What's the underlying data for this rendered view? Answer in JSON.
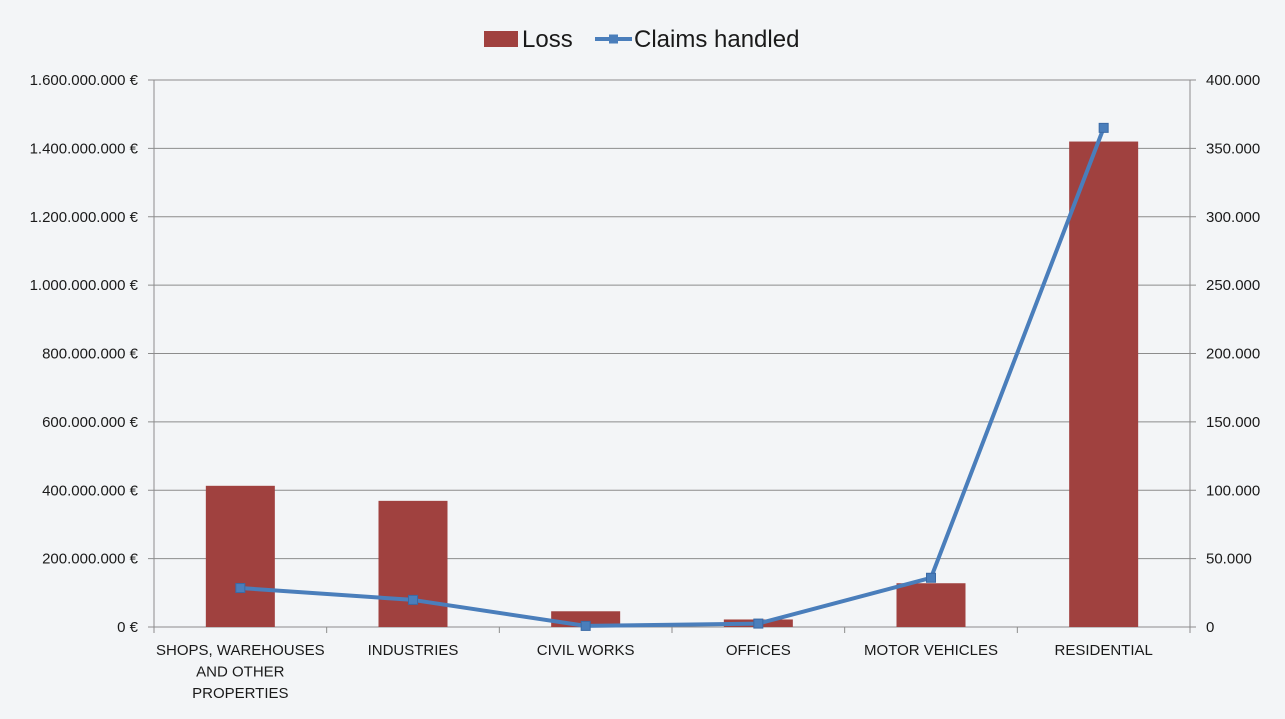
{
  "chart_data": {
    "type": "bar",
    "categories": [
      [
        "SHOPS, WAREHOUSES",
        "AND OTHER",
        "PROPERTIES"
      ],
      [
        "INDUSTRIES"
      ],
      [
        "CIVIL WORKS"
      ],
      [
        "OFFICES"
      ],
      [
        "MOTOR VEHICLES"
      ],
      [
        "RESIDENTIAL"
      ]
    ],
    "series": [
      {
        "name": "Loss",
        "type": "bar",
        "axis": "left",
        "color": "#a0413f",
        "values": [
          413000000,
          369000000,
          46000000,
          22000000,
          128000000,
          1420000000
        ]
      },
      {
        "name": "Claims handled",
        "type": "line",
        "axis": "right",
        "color": "#4a7ebb",
        "values": [
          28500,
          19800,
          800,
          2500,
          36000,
          365000
        ]
      }
    ],
    "y_left": {
      "ylim": [
        0,
        1600000000
      ],
      "ticks": [
        "0 €",
        "200.000.000 €",
        "400.000.000 €",
        "600.000.000 €",
        "800.000.000 €",
        "1.000.000.000 €",
        "1.200.000.000 €",
        "1.400.000.000 €",
        "1.600.000.000 €"
      ]
    },
    "y_right": {
      "ylim": [
        0,
        400000
      ],
      "ticks": [
        "0",
        "50.000",
        "100.000",
        "150.000",
        "200.000",
        "250.000",
        "300.000",
        "350.000",
        "400.000"
      ]
    },
    "legend": "top-center",
    "grid": true,
    "title": "",
    "xlabel": "",
    "ylabel": ""
  }
}
